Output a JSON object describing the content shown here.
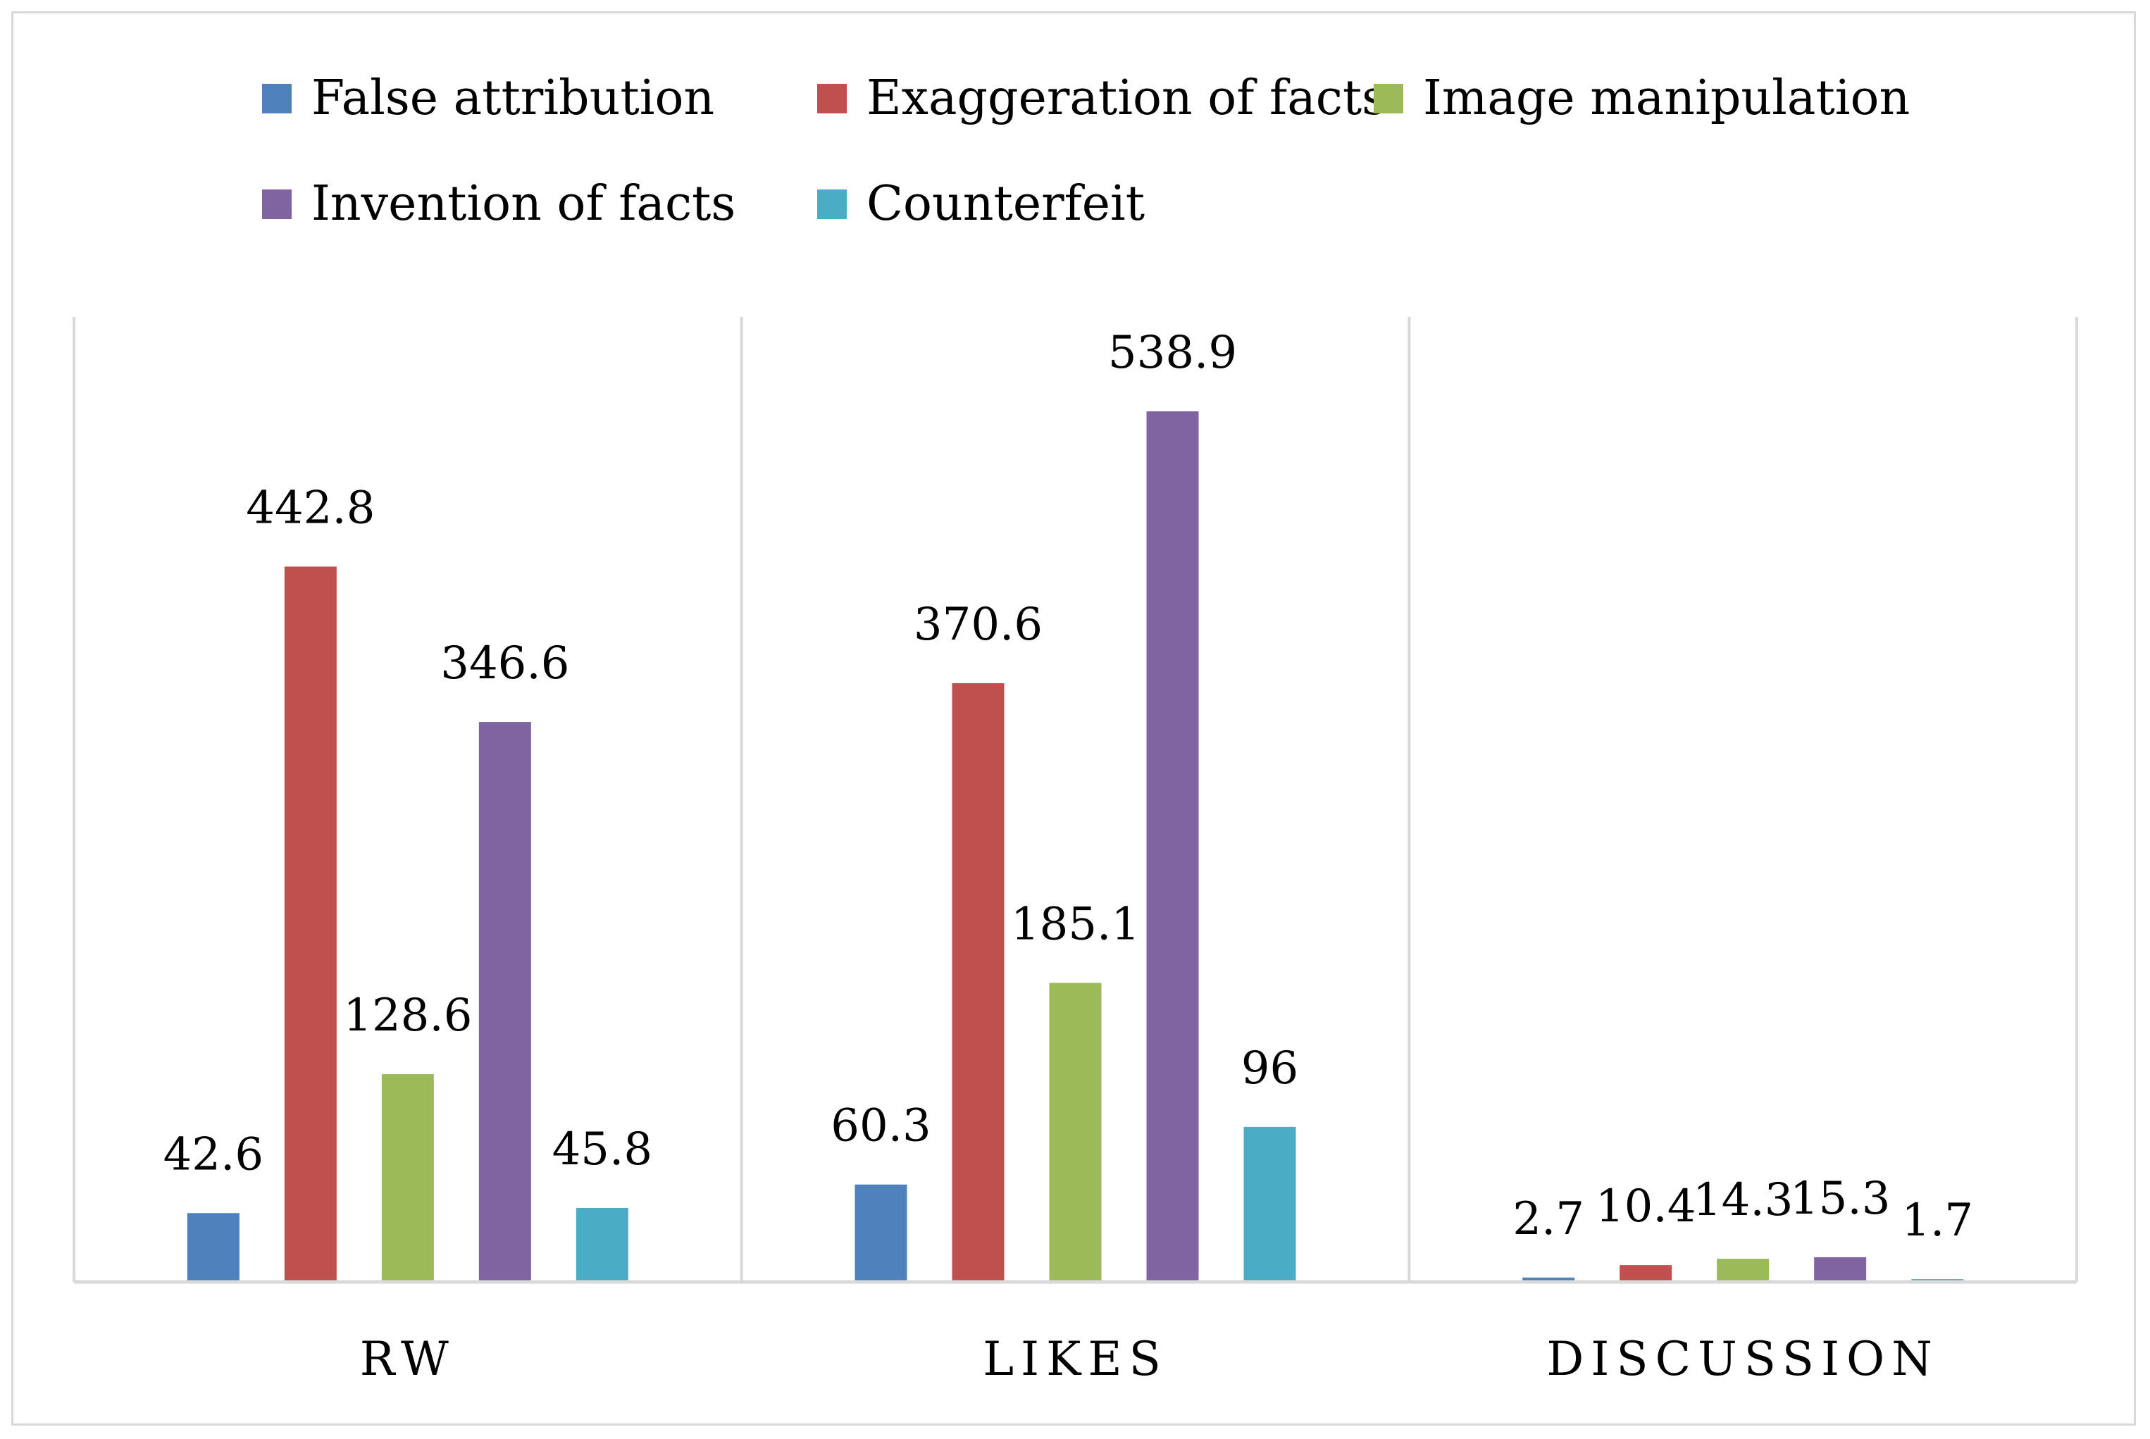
{
  "chart_data": {
    "type": "bar",
    "title": "",
    "xlabel": "",
    "ylabel": "",
    "categories": [
      "RW",
      "LIKES",
      "DISCUSSION"
    ],
    "series": [
      {
        "name": "False attribution",
        "color": "#4f81bd",
        "values": [
          42.6,
          60.3,
          2.7
        ],
        "labels": [
          "42.6",
          "60.3",
          "2.7"
        ]
      },
      {
        "name": "Exaggeration of facts",
        "color": "#c0504d",
        "values": [
          442.8,
          370.6,
          10.4
        ],
        "labels": [
          "442.8",
          "370.6",
          "10.4"
        ]
      },
      {
        "name": "Image manipulation",
        "color": "#9bbb59",
        "values": [
          128.6,
          185.1,
          14.3
        ],
        "labels": [
          "128.6",
          "185.1",
          "14.3"
        ]
      },
      {
        "name": "Invention of facts",
        "color": "#8064a2",
        "values": [
          346.6,
          538.9,
          15.3
        ],
        "labels": [
          "346.6",
          "538.9",
          "15.3"
        ]
      },
      {
        "name": "Counterfeit",
        "color": "#4bacc6",
        "values": [
          45.8,
          96,
          1.7
        ],
        "labels": [
          "45.8",
          "96",
          "1.7"
        ]
      }
    ],
    "ylim": [
      0,
      600
    ],
    "grid": false,
    "legend_position": "top"
  }
}
